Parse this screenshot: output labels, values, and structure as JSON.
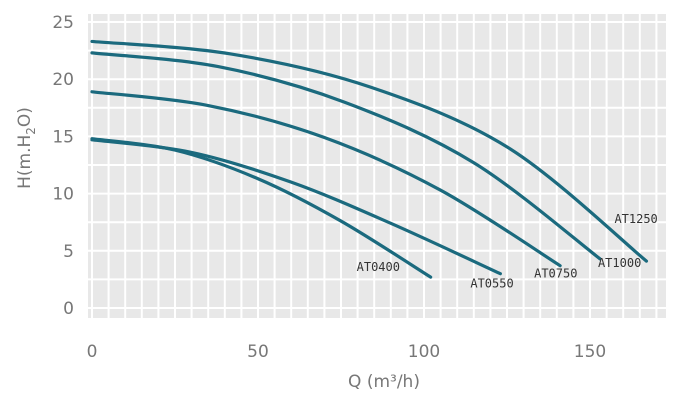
{
  "chart_data": {
    "type": "line",
    "xlabel": "Q (m³/h)",
    "ylabel_parts": {
      "prefix": "H(m.H",
      "sub": "2",
      "suffix": "O)"
    },
    "xlim": [
      0,
      175
    ],
    "ylim": [
      0,
      25
    ],
    "x_ticks": [
      "0",
      "50",
      "100",
      "150"
    ],
    "x_tick_values": [
      0,
      50,
      100,
      150
    ],
    "y_ticks": [
      "0",
      "5",
      "10",
      "15",
      "20",
      "25"
    ],
    "y_tick_values": [
      0,
      5,
      10,
      15,
      20,
      25
    ],
    "grid": true,
    "colors": {
      "series": "#1b6a7e",
      "band": "#e8e8e8",
      "grid": "#ffffff",
      "text": "#777777"
    },
    "series": [
      {
        "name": "AT0400",
        "x": [
          0,
          25,
          50,
          75,
          102
        ],
        "y": [
          14.8,
          13.8,
          11.3,
          7.6,
          2.7
        ]
      },
      {
        "name": "AT0550",
        "x": [
          0,
          30,
          60,
          90,
          123
        ],
        "y": [
          14.7,
          13.6,
          11.0,
          7.4,
          3.0
        ]
      },
      {
        "name": "AT0750",
        "x": [
          0,
          35,
          70,
          105,
          141
        ],
        "y": [
          18.9,
          17.7,
          14.9,
          10.3,
          3.7
        ]
      },
      {
        "name": "AT1000",
        "x": [
          0,
          38,
          76,
          115,
          153
        ],
        "y": [
          22.3,
          21.1,
          18.0,
          12.7,
          4.3
        ]
      },
      {
        "name": "AT1250",
        "x": [
          0,
          42,
          84,
          126,
          167
        ],
        "y": [
          23.3,
          22.2,
          19.3,
          13.9,
          4.1
        ]
      }
    ]
  }
}
